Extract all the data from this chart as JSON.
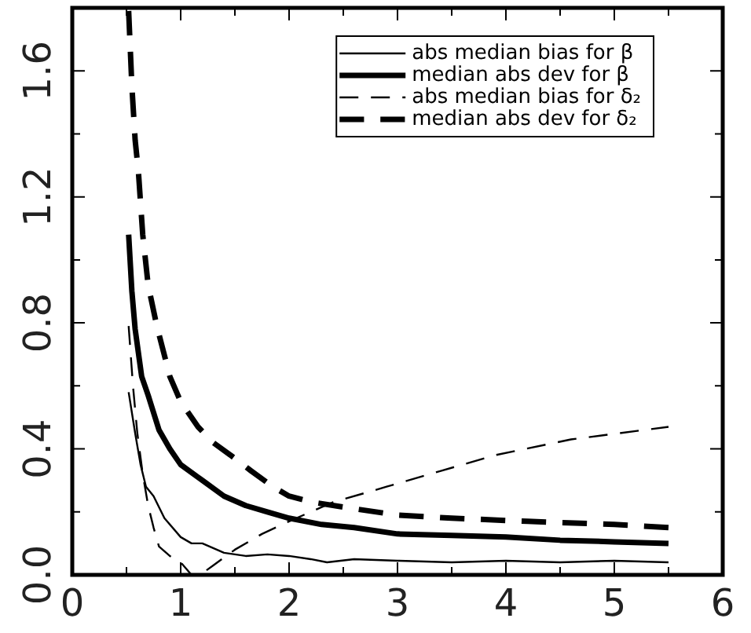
{
  "chart_data": {
    "type": "line",
    "legend": "top right",
    "grid": false,
    "marker": "none",
    "xlim": [
      0,
      6
    ],
    "xticks": [
      0,
      {
        "value": 0.5,
        "label": null
      },
      1,
      {
        "value": 1.5,
        "label": null
      },
      2,
      {
        "value": 2.5,
        "label": null
      },
      3,
      {
        "value": 3.5,
        "label": null
      },
      4,
      {
        "value": 4.5,
        "label": null
      },
      5,
      {
        "value": 5.5,
        "label": null
      },
      6
    ],
    "ylim": [
      0,
      1.8
    ],
    "yticks": [
      {
        "value": 0,
        "label": "0.0"
      },
      {
        "value": 0.2,
        "label": null
      },
      0.4,
      {
        "value": 0.6,
        "label": null
      },
      0.8,
      {
        "value": 1,
        "label": null
      },
      1.2,
      {
        "value": 1.4,
        "label": null
      },
      1.6
    ],
    "series": [
      {
        "name": "abs median bias for β",
        "color": "#000000",
        "line_style": "solid",
        "x": [
          0.52,
          0.58,
          0.63,
          0.68,
          0.75,
          0.85,
          1.0,
          1.1,
          1.2,
          1.4,
          1.6,
          1.8,
          2.0,
          2.2,
          2.35,
          2.6,
          3.0,
          3.5,
          4.0,
          4.5,
          5.0,
          5.5
        ],
        "values": [
          0.58,
          0.45,
          0.35,
          0.28,
          0.25,
          0.18,
          0.12,
          0.1,
          0.1,
          0.07,
          0.06,
          0.065,
          0.06,
          0.05,
          0.04,
          0.05,
          0.045,
          0.04,
          0.045,
          0.04,
          0.045,
          0.04
        ]
      },
      {
        "name": "median abs dev for β",
        "color": "#000000",
        "line_style": "solid",
        "x": [
          0.52,
          0.55,
          0.58,
          0.62,
          0.64,
          0.7,
          0.8,
          0.9,
          1.0,
          1.2,
          1.4,
          1.6,
          1.8,
          2.0,
          2.3,
          2.6,
          3.0,
          3.5,
          4.0,
          4.5,
          5.0,
          5.5
        ],
        "values": [
          1.08,
          0.9,
          0.78,
          0.68,
          0.63,
          0.57,
          0.46,
          0.4,
          0.35,
          0.3,
          0.25,
          0.22,
          0.2,
          0.18,
          0.16,
          0.15,
          0.13,
          0.125,
          0.12,
          0.11,
          0.105,
          0.1
        ]
      },
      {
        "name": "abs median bias for δ₂",
        "color": "#000000",
        "line_style": "dashed",
        "x": [
          0.52,
          0.56,
          0.6,
          0.65,
          0.7,
          0.75,
          0.8,
          0.9,
          1.0,
          1.05,
          1.1,
          1.2,
          1.3,
          1.5,
          1.75,
          2.0,
          2.4,
          2.9,
          3.4,
          3.9,
          4.6,
          5.5
        ],
        "values": [
          0.79,
          0.6,
          0.45,
          0.32,
          0.22,
          0.15,
          0.09,
          0.06,
          0.04,
          0.02,
          0,
          0.005,
          0.03,
          0.08,
          0.13,
          0.17,
          0.23,
          0.28,
          0.33,
          0.38,
          0.43,
          0.47
        ]
      },
      {
        "name": "median abs dev for δ₂",
        "color": "#000000",
        "line_style": "dashed",
        "x": [
          0.52,
          0.55,
          0.58,
          0.61,
          0.65,
          0.7,
          0.78,
          0.9,
          1.0,
          1.16,
          1.3,
          1.46,
          1.65,
          1.85,
          2.0,
          2.23,
          2.6,
          3.0,
          3.5,
          4.2,
          5.0,
          5.5
        ],
        "values": [
          1.79,
          1.55,
          1.38,
          1.28,
          1.08,
          0.92,
          0.79,
          0.63,
          0.55,
          0.47,
          0.42,
          0.38,
          0.33,
          0.28,
          0.25,
          0.23,
          0.21,
          0.19,
          0.18,
          0.17,
          0.16,
          0.15
        ]
      }
    ]
  }
}
